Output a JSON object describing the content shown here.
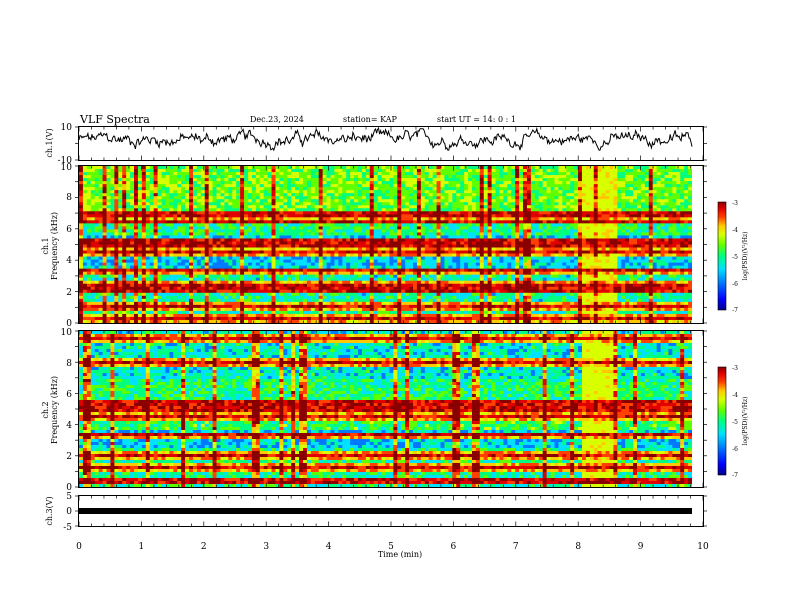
{
  "header": {
    "title": "VLF Spectra",
    "date": "Dec.23, 2024",
    "station": "station= KAP",
    "start": "start  UT =   14: 0  : 1"
  },
  "chart_data": [
    {
      "type": "line",
      "panel": "ch1-waveform",
      "ylabel": "ch.1(V)",
      "ylim": [
        -10,
        10
      ],
      "yticks": [
        "10",
        "-10"
      ],
      "xlim": [
        0,
        10
      ],
      "series_points": 620,
      "amplitude_range": [
        -4,
        9
      ]
    },
    {
      "type": "heatmap",
      "panel": "ch1-spectrogram",
      "ylabel_line1": "ch.1",
      "ylabel_line2": "Frequency (kHz)",
      "ylim": [
        0,
        10
      ],
      "yticks": [
        "0",
        "2",
        "4",
        "6",
        "8",
        "10"
      ],
      "xlim": [
        0,
        10
      ],
      "colorbar": {
        "label": "log(PSD)(V²/Hz)",
        "range": [
          -7,
          -3
        ],
        "ticks": [
          "-3",
          "-4",
          "-5",
          "-6",
          "-7"
        ]
      },
      "strong_bands_khz": [
        0.3,
        1.1,
        2.1,
        2.45,
        3.3,
        4.5,
        5.0,
        5.2,
        6.5,
        6.9
      ],
      "burst_interval_min": [
        8.05,
        8.6
      ]
    },
    {
      "type": "heatmap",
      "panel": "ch2-spectrogram",
      "ylabel_line1": "ch.2",
      "ylabel_line2": "Frequency (kHz)",
      "ylim": [
        0,
        10
      ],
      "yticks": [
        "0",
        "2",
        "4",
        "6",
        "8",
        "10"
      ],
      "xlim": [
        0,
        10
      ],
      "colorbar": {
        "label": "log(PSD)(V²/Hz)",
        "range": [
          -7,
          -3
        ],
        "ticks": [
          "-3",
          "-4",
          "-5",
          "-6",
          "-7"
        ]
      },
      "strong_bands_khz": [
        0.4,
        1.3,
        2.0,
        3.3,
        4.5,
        5.0,
        5.4,
        8.0,
        9.5
      ],
      "burst_interval_min": [
        8.05,
        8.6
      ]
    },
    {
      "type": "line",
      "panel": "ch3-waveform",
      "ylabel": "ch.3(V)",
      "ylim": [
        -5,
        5
      ],
      "yticks": [
        "5",
        "0",
        "-5"
      ],
      "xlim": [
        0,
        10
      ],
      "constant_value": 0,
      "xlabel": "Time  (min)",
      "xticks": [
        "0",
        "1",
        "2",
        "3",
        "4",
        "5",
        "6",
        "7",
        "8",
        "9",
        "10"
      ]
    }
  ],
  "colormap": [
    "#00008a",
    "#0000ff",
    "#0078ff",
    "#00e0ff",
    "#00ff80",
    "#60ff00",
    "#d8ff00",
    "#ffc800",
    "#ff4000",
    "#e00000",
    "#8a0000"
  ]
}
